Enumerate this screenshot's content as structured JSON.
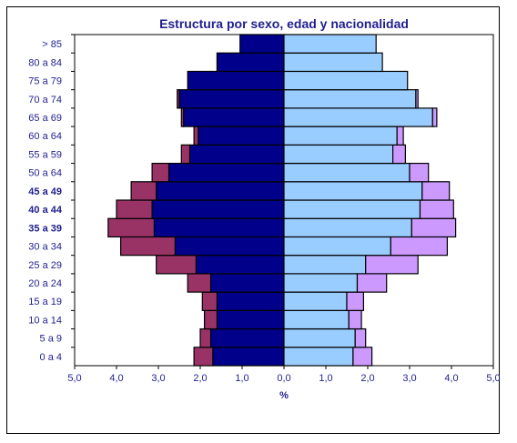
{
  "chart_data": {
    "type": "bar",
    "orientation": "horizontal",
    "title": "Estructura por sexo, edad y nacionalidad",
    "xlabel": "%",
    "ylabel": "",
    "xlim": [
      -5,
      5
    ],
    "x_ticks": [
      "5,0",
      "4,0",
      "3,0",
      "2,0",
      "1,0",
      "0,0",
      "1,0",
      "2,0",
      "3,0",
      "4,0",
      "5,0"
    ],
    "categories": [
      "0 a 4",
      "5 a 9",
      "10 a 14",
      "15 a 19",
      "20 a 24",
      "25 a 29",
      "30 a 34",
      "35 a 39",
      "40 a 44",
      "45 a 49",
      "50 a 64",
      "55 a 59",
      "60 a 64",
      "65 a 69",
      "70 a 74",
      "75 a 79",
      "80 a 84",
      "> 85"
    ],
    "bold_categories": [
      "45 a 49",
      "40 a 44",
      "35 a 39"
    ],
    "series": [
      {
        "side": "left",
        "values": [
          1.7,
          1.75,
          1.6,
          1.6,
          1.75,
          2.1,
          2.6,
          3.1,
          3.15,
          3.05,
          2.75,
          2.25,
          2.05,
          2.4,
          2.5,
          2.3,
          1.6,
          1.05
        ]
      },
      {
        "side": "left",
        "values": [
          0.45,
          0.25,
          0.3,
          0.35,
          0.55,
          0.95,
          1.3,
          1.1,
          0.85,
          0.6,
          0.4,
          0.2,
          0.1,
          0.05,
          0.05,
          0.0,
          0.0,
          0.0
        ]
      },
      {
        "side": "right",
        "values": [
          1.65,
          1.7,
          1.55,
          1.5,
          1.75,
          1.95,
          2.55,
          3.05,
          3.25,
          3.3,
          3.0,
          2.6,
          2.7,
          3.55,
          3.15,
          2.95,
          2.35,
          2.2
        ]
      },
      {
        "side": "right",
        "values": [
          0.45,
          0.25,
          0.3,
          0.4,
          0.7,
          1.25,
          1.35,
          1.05,
          0.8,
          0.65,
          0.45,
          0.3,
          0.15,
          0.1,
          0.05,
          0.0,
          0.0,
          0.0
        ]
      }
    ],
    "colors": {
      "left_inner": "#00008b",
      "left_outer": "#993366",
      "right_inner": "#99ccff",
      "right_outer": "#cc99ff",
      "border": "#000000",
      "text": "#1f1f8f"
    },
    "grid": false,
    "legend": "none"
  }
}
